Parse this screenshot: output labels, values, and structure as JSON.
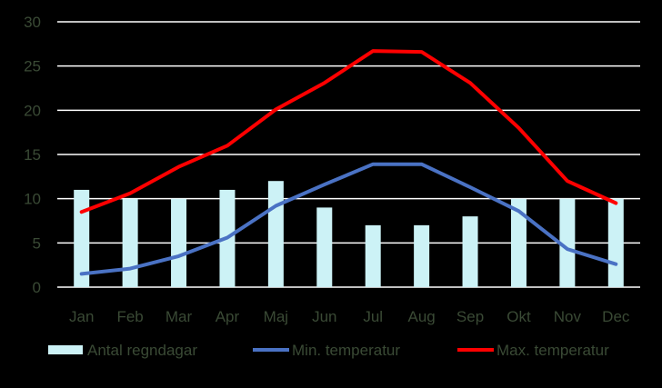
{
  "chart_data": {
    "type": "bar",
    "categories": [
      "Jan",
      "Feb",
      "Mar",
      "Apr",
      "Maj",
      "Jun",
      "Jul",
      "Aug",
      "Sep",
      "Okt",
      "Nov",
      "Dec"
    ],
    "ylim": [
      0,
      30
    ],
    "yticks": [
      0,
      5,
      10,
      15,
      20,
      25,
      30
    ],
    "grid": true,
    "legend_position": "bottom",
    "series": [
      {
        "name": "Antal regndagar",
        "kind": "bar",
        "color": "#ccf2f6",
        "values": [
          11,
          10,
          10,
          11,
          12,
          9,
          7,
          7,
          8,
          10,
          10,
          10
        ]
      },
      {
        "name": "Min. temperatur",
        "kind": "line",
        "color": "#4a72c4",
        "values": [
          1.5,
          2.1,
          3.5,
          5.6,
          9.2,
          11.6,
          13.9,
          13.9,
          11.3,
          8.6,
          4.3,
          2.6
        ]
      },
      {
        "name": "Max. temperatur",
        "kind": "line",
        "color": "#ff0000",
        "values": [
          8.5,
          10.6,
          13.6,
          16.0,
          20.1,
          23.1,
          26.7,
          26.6,
          23.1,
          18.0,
          12.0,
          9.5
        ]
      }
    ]
  }
}
